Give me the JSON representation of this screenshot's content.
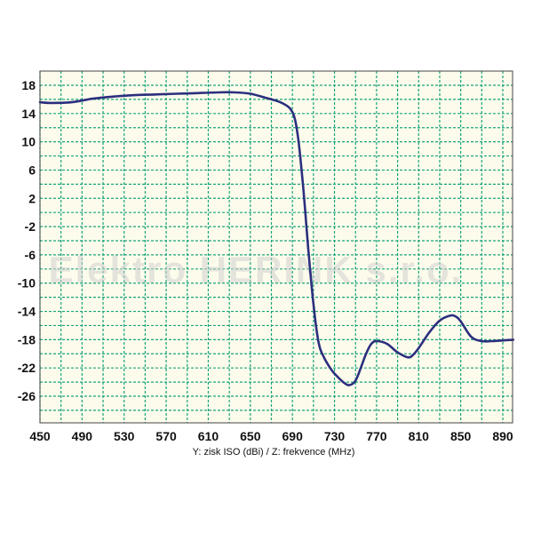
{
  "chart_data": {
    "type": "line",
    "title": "",
    "caption": "Y:  zisk ISO  (dBi)  /  Z:  frekvence  (MHz)",
    "watermark": "Elektro HERINK s.r.o.",
    "xlim": [
      450,
      900
    ],
    "ylim": [
      -30,
      20
    ],
    "x_ticks": [
      450,
      490,
      530,
      570,
      610,
      650,
      690,
      730,
      770,
      810,
      850,
      890
    ],
    "y_ticks": [
      18,
      14,
      10,
      6,
      2,
      -2,
      -6,
      -10,
      -14,
      -18,
      -22,
      -26
    ],
    "grid": true,
    "colors": {
      "plot_background": "#fdfcec",
      "grid": "#1aa37a",
      "line": "#2c2f7e"
    },
    "series": [
      {
        "x": [
          450,
          460,
          480,
          500,
          520,
          540,
          560,
          580,
          600,
          620,
          635,
          650,
          665,
          680,
          690,
          695,
          700,
          705,
          710,
          715,
          720,
          725,
          730,
          740,
          745,
          750,
          755,
          760,
          765,
          770,
          780,
          790,
          800,
          805,
          810,
          820,
          830,
          840,
          845,
          850,
          860,
          870,
          880,
          900
        ],
        "y": [
          15.6,
          15.5,
          15.6,
          16.1,
          16.4,
          16.6,
          16.7,
          16.8,
          16.9,
          17.0,
          17.0,
          16.8,
          16.2,
          15.5,
          14.2,
          11.0,
          4.0,
          -5.0,
          -13.0,
          -18.5,
          -20.5,
          -21.8,
          -22.8,
          -24.2,
          -24.4,
          -23.8,
          -22.0,
          -20.0,
          -18.6,
          -18.2,
          -18.6,
          -19.8,
          -20.5,
          -20.1,
          -19.2,
          -17.0,
          -15.3,
          -14.6,
          -14.7,
          -15.4,
          -17.6,
          -18.2,
          -18.2,
          -18.0
        ]
      }
    ]
  }
}
